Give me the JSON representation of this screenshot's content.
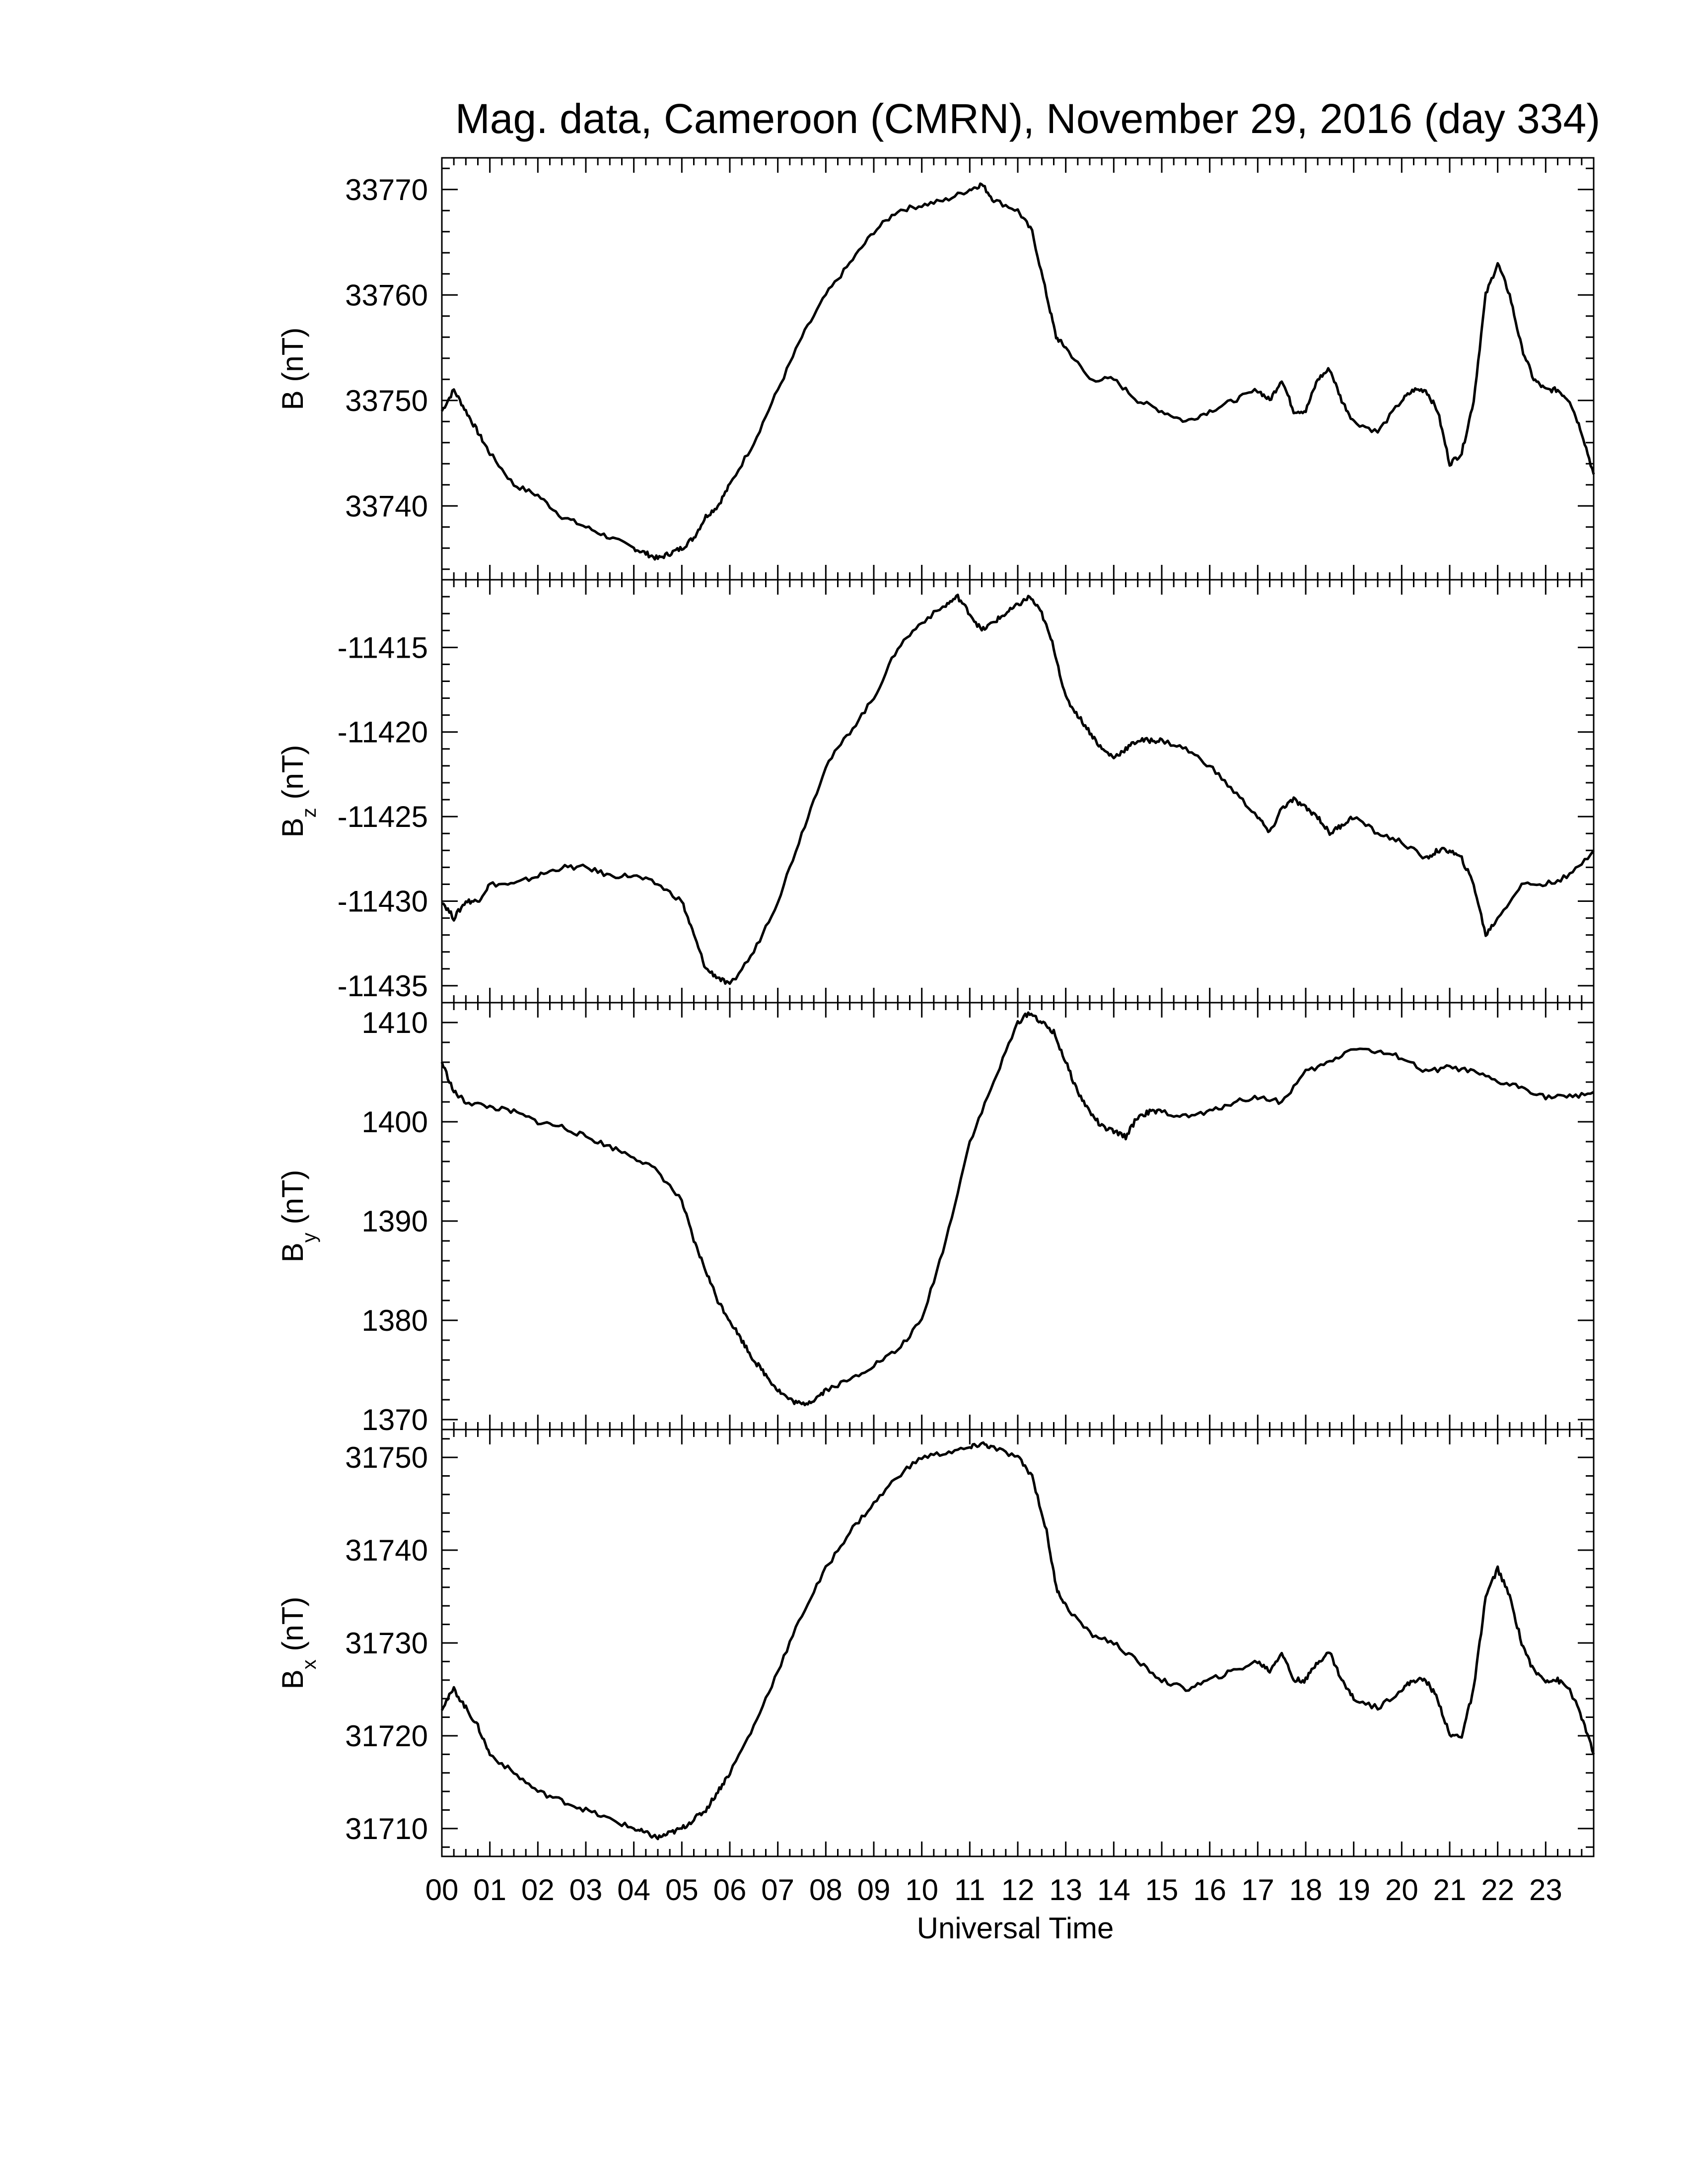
{
  "chart_data": {
    "title": "Mag. data, Cameroon (CMRN), November 29, 2016 (day 334)",
    "xlabel": "Universal Time",
    "x_tick_labels": [
      "00",
      "01",
      "02",
      "03",
      "04",
      "05",
      "06",
      "07",
      "08",
      "09",
      "10",
      "11",
      "12",
      "13",
      "14",
      "15",
      "16",
      "17",
      "18",
      "19",
      "20",
      "21",
      "22",
      "23"
    ],
    "x_range_hours": [
      0,
      24
    ],
    "line_color": "#000000",
    "panels": [
      {
        "id": "B",
        "type": "line",
        "ylabel": "B (nT)",
        "ylabel_main": "B",
        "ylabel_sub": "",
        "ylabel_unit": " (nT)",
        "ylim": [
          33733,
          33773
        ],
        "yticks": [
          33740,
          33750,
          33760,
          33770
        ],
        "ytick_labels": [
          "33740",
          "33750",
          "33760",
          "33770"
        ],
        "x": [
          0,
          0.25,
          0.5,
          0.75,
          1,
          1.5,
          2,
          2.5,
          3,
          3.5,
          4,
          4.25,
          4.5,
          4.75,
          5,
          5.25,
          5.5,
          5.75,
          6,
          6.5,
          7,
          7.5,
          8,
          8.5,
          9,
          9.5,
          10,
          10.5,
          11,
          11.25,
          11.5,
          12,
          12.3,
          12.6,
          12.8,
          13,
          13.5,
          14,
          14.5,
          15,
          15.5,
          16,
          16.5,
          17,
          17.25,
          17.5,
          17.75,
          18,
          18.25,
          18.5,
          18.75,
          19,
          19.5,
          20,
          20.25,
          20.5,
          20.75,
          21,
          21.25,
          21.5,
          21.75,
          22,
          22.25,
          22.5,
          22.75,
          23,
          23.25,
          23.5,
          23.75,
          24
        ],
        "y": [
          33749,
          33751,
          33749,
          33747,
          33745,
          33742,
          33741,
          33739,
          33738,
          33737,
          33736,
          33735.5,
          33735,
          33735.5,
          33736,
          33737,
          33739,
          33740,
          33742,
          33746,
          33751,
          33756,
          33760,
          33763,
          33766,
          33768,
          33768.5,
          33769,
          33770,
          33770.5,
          33769,
          33768,
          33766,
          33760,
          33756,
          33755,
          33752,
          33752,
          33750,
          33749,
          33748,
          33749,
          33750,
          33751,
          33750,
          33752,
          33749,
          33749,
          33752,
          33753,
          33750,
          33748,
          33747,
          33750,
          33751,
          33751,
          33749,
          33744,
          33745,
          33750,
          33760,
          33763,
          33760,
          33755,
          33752,
          33751,
          33751,
          33750,
          33747,
          33743
        ]
      },
      {
        "id": "Bz",
        "type": "line",
        "ylabel": "Bz (nT)",
        "ylabel_main": "B",
        "ylabel_sub": "z",
        "ylabel_unit": " (nT)",
        "ylim": [
          -11436,
          -11411
        ],
        "yticks": [
          -11435,
          -11430,
          -11425,
          -11420,
          -11415
        ],
        "ytick_labels": [
          "-11435",
          "-11430",
          "-11425",
          "-11420",
          "-11415"
        ],
        "x": [
          0,
          0.25,
          0.5,
          0.75,
          1,
          1.5,
          2,
          2.5,
          3,
          3.5,
          4,
          4.5,
          5,
          5.25,
          5.5,
          5.75,
          6,
          6.5,
          7,
          7.5,
          8,
          8.5,
          9,
          9.5,
          10,
          10.5,
          10.75,
          11,
          11.25,
          11.5,
          11.75,
          12,
          12.25,
          12.5,
          12.75,
          13,
          13.25,
          13.5,
          13.75,
          14,
          14.25,
          14.5,
          14.75,
          15,
          15.5,
          16,
          16.5,
          17,
          17.25,
          17.5,
          17.75,
          18,
          18.25,
          18.5,
          18.75,
          19,
          19.5,
          20,
          20.5,
          20.75,
          21,
          21.25,
          21.5,
          21.75,
          22,
          22.5,
          23,
          23.5,
          24
        ],
        "y": [
          -11430,
          -11431,
          -11430,
          -11430,
          -11429,
          -11429,
          -11428.5,
          -11428,
          -11428,
          -11428.5,
          -11428.5,
          -11429,
          -11430,
          -11432,
          -11434,
          -11434.5,
          -11435,
          -11433,
          -11430,
          -11426,
          -11422,
          -11420,
          -11418,
          -11415,
          -11413.5,
          -11412.5,
          -11412,
          -11413,
          -11414,
          -11413.5,
          -11413,
          -11412.5,
          -11412,
          -11413,
          -11415,
          -11418,
          -11419,
          -11420,
          -11421,
          -11421.5,
          -11421,
          -11420.5,
          -11420.5,
          -11420.5,
          -11421,
          -11422,
          -11423.5,
          -11425,
          -11426,
          -11424.5,
          -11424,
          -11424.5,
          -11425,
          -11426,
          -11425.5,
          -11425,
          -11426,
          -11426.5,
          -11427.5,
          -11427,
          -11427,
          -11427.5,
          -11429,
          -11432,
          -11431,
          -11429,
          -11429,
          -11428.5,
          -11427
        ]
      },
      {
        "id": "By",
        "type": "line",
        "ylabel": "By (nT)",
        "ylabel_main": "B",
        "ylabel_sub": "y",
        "ylabel_unit": " (nT)",
        "ylim": [
          1369,
          1412
        ],
        "yticks": [
          1370,
          1380,
          1390,
          1400,
          1410
        ],
        "ytick_labels": [
          "1370",
          "1380",
          "1390",
          "1400",
          "1410"
        ],
        "x": [
          0,
          0.25,
          0.5,
          1,
          1.5,
          2,
          2.5,
          3,
          3.5,
          4,
          4.5,
          5,
          5.25,
          5.5,
          5.75,
          6,
          6.25,
          6.5,
          6.75,
          7,
          7.25,
          7.5,
          7.75,
          8,
          8.5,
          9,
          9.5,
          10,
          10.5,
          11,
          11.5,
          12,
          12.25,
          12.5,
          12.75,
          13,
          13.25,
          13.5,
          13.75,
          14,
          14.25,
          14.5,
          14.75,
          15,
          15.5,
          16,
          16.5,
          17,
          17.5,
          18,
          18.5,
          19,
          19.5,
          20,
          20.5,
          21,
          21.5,
          22,
          22.5,
          23,
          23.5,
          24
        ],
        "y": [
          1406,
          1403,
          1402,
          1401.5,
          1401,
          1400,
          1399.5,
          1398.5,
          1397.5,
          1396.5,
          1395,
          1392,
          1388,
          1385,
          1382,
          1380,
          1378,
          1376,
          1374.5,
          1373,
          1372,
          1371.5,
          1372,
          1373,
          1374,
          1375.5,
          1377,
          1380,
          1388,
          1398,
          1404,
          1410,
          1411,
          1410,
          1409,
          1406,
          1403,
          1401,
          1399.5,
          1399,
          1398.5,
          1400.5,
          1401,
          1401,
          1400.5,
          1401,
          1402,
          1402.5,
          1402,
          1405,
          1406,
          1407.5,
          1407,
          1406.5,
          1405,
          1405.5,
          1405,
          1404,
          1403.5,
          1402.5,
          1402.5,
          1403
        ]
      },
      {
        "id": "Bx",
        "type": "line",
        "ylabel": "Bx (nT)",
        "ylabel_main": "B",
        "ylabel_sub": "x",
        "ylabel_unit": " (nT)",
        "ylim": [
          31707,
          31753
        ],
        "yticks": [
          31710,
          31720,
          31730,
          31740,
          31750
        ],
        "ytick_labels": [
          "31710",
          "31720",
          "31730",
          "31740",
          "31750"
        ],
        "x": [
          0,
          0.25,
          0.5,
          0.75,
          1,
          1.5,
          2,
          2.5,
          3,
          3.5,
          4,
          4.25,
          4.5,
          4.75,
          5,
          5.25,
          5.5,
          5.75,
          6,
          6.5,
          7,
          7.5,
          8,
          8.5,
          9,
          9.5,
          10,
          10.5,
          11,
          11.25,
          11.5,
          12,
          12.3,
          12.6,
          12.8,
          13,
          13.5,
          14,
          14.5,
          15,
          15.5,
          16,
          16.5,
          17,
          17.25,
          17.5,
          17.75,
          18,
          18.25,
          18.5,
          18.75,
          19,
          19.5,
          20,
          20.25,
          20.5,
          20.75,
          21,
          21.25,
          21.5,
          21.75,
          22,
          22.25,
          22.5,
          22.75,
          23,
          23.25,
          23.5,
          23.75,
          24
        ],
        "y": [
          31723,
          31725,
          31723,
          31721,
          31718,
          31716,
          31714,
          31713,
          31712,
          31711,
          31710,
          31709.5,
          31709,
          31709.5,
          31710,
          31711,
          31712,
          31714,
          31716,
          31721,
          31727,
          31733,
          31738,
          31742,
          31745,
          31748,
          31750,
          31750.5,
          31751,
          31751.5,
          31751,
          31750,
          31748,
          31742,
          31736,
          31734,
          31731,
          31730,
          31728,
          31726,
          31725,
          31726,
          31727,
          31728,
          31727,
          31729,
          31726,
          31726,
          31728,
          31729,
          31726,
          31724,
          31723,
          31725,
          31726,
          31726,
          31724,
          31720,
          31720,
          31725,
          31735,
          31738,
          31735,
          31730,
          31727,
          31726,
          31726,
          31725,
          31722,
          31718
        ]
      }
    ]
  }
}
